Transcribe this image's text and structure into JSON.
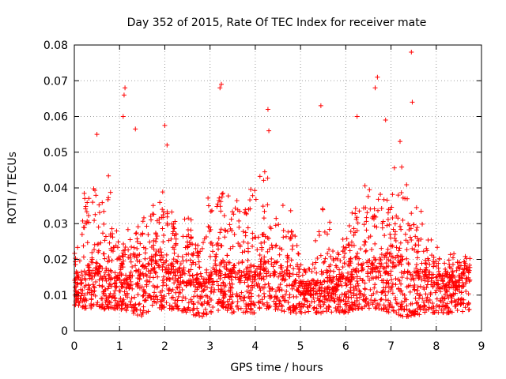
{
  "chart_data": {
    "type": "scatter",
    "title": "Day 352 of 2015, Rate Of TEC Index for receiver mate",
    "xlabel": "GPS time / hours",
    "ylabel": "ROTI / TECUs",
    "xlim": [
      0,
      9
    ],
    "ylim": [
      0,
      0.08
    ],
    "x_ticks": [
      "0",
      "1",
      "2",
      "3",
      "4",
      "5",
      "6",
      "7",
      "8",
      "9"
    ],
    "y_ticks": [
      "0",
      "0.01",
      "0.02",
      "0.03",
      "0.04",
      "0.05",
      "0.06",
      "0.07",
      "0.08"
    ],
    "grid": true,
    "marker": "+",
    "color": "#ff0000",
    "series": [
      {
        "name": "ROTI",
        "notable_points": [
          {
            "x": 7.45,
            "y": 0.078
          },
          {
            "x": 6.7,
            "y": 0.071
          },
          {
            "x": 6.65,
            "y": 0.068
          },
          {
            "x": 3.25,
            "y": 0.069
          },
          {
            "x": 3.22,
            "y": 0.068
          },
          {
            "x": 1.12,
            "y": 0.068
          },
          {
            "x": 1.1,
            "y": 0.066
          },
          {
            "x": 7.47,
            "y": 0.064
          },
          {
            "x": 4.28,
            "y": 0.062
          },
          {
            "x": 5.45,
            "y": 0.063
          },
          {
            "x": 1.08,
            "y": 0.06
          },
          {
            "x": 6.25,
            "y": 0.06
          },
          {
            "x": 6.88,
            "y": 0.059
          },
          {
            "x": 2.0,
            "y": 0.0575
          },
          {
            "x": 1.35,
            "y": 0.0565
          },
          {
            "x": 4.3,
            "y": 0.056
          },
          {
            "x": 0.5,
            "y": 0.055
          },
          {
            "x": 2.05,
            "y": 0.052
          },
          {
            "x": 7.2,
            "y": 0.053
          }
        ],
        "envelope": [
          {
            "x": 0.0,
            "low": 0.007,
            "mid": 0.012,
            "high": 0.026
          },
          {
            "x": 0.25,
            "low": 0.006,
            "mid": 0.014,
            "high": 0.045
          },
          {
            "x": 0.5,
            "low": 0.006,
            "mid": 0.016,
            "high": 0.05
          },
          {
            "x": 0.75,
            "low": 0.006,
            "mid": 0.013,
            "high": 0.045
          },
          {
            "x": 1.0,
            "low": 0.006,
            "mid": 0.012,
            "high": 0.03
          },
          {
            "x": 1.25,
            "low": 0.005,
            "mid": 0.012,
            "high": 0.028
          },
          {
            "x": 1.5,
            "low": 0.004,
            "mid": 0.014,
            "high": 0.032
          },
          {
            "x": 1.75,
            "low": 0.006,
            "mid": 0.018,
            "high": 0.04
          },
          {
            "x": 2.0,
            "low": 0.006,
            "mid": 0.017,
            "high": 0.042
          },
          {
            "x": 2.25,
            "low": 0.006,
            "mid": 0.014,
            "high": 0.032
          },
          {
            "x": 2.5,
            "low": 0.005,
            "mid": 0.013,
            "high": 0.032
          },
          {
            "x": 2.75,
            "low": 0.004,
            "mid": 0.012,
            "high": 0.03
          },
          {
            "x": 3.0,
            "low": 0.004,
            "mid": 0.013,
            "high": 0.042
          },
          {
            "x": 3.25,
            "low": 0.006,
            "mid": 0.016,
            "high": 0.045
          },
          {
            "x": 3.5,
            "low": 0.005,
            "mid": 0.015,
            "high": 0.04
          },
          {
            "x": 3.75,
            "low": 0.005,
            "mid": 0.014,
            "high": 0.042
          },
          {
            "x": 4.0,
            "low": 0.005,
            "mid": 0.014,
            "high": 0.043
          },
          {
            "x": 4.25,
            "low": 0.006,
            "mid": 0.016,
            "high": 0.046
          },
          {
            "x": 4.5,
            "low": 0.006,
            "mid": 0.015,
            "high": 0.04
          },
          {
            "x": 4.75,
            "low": 0.005,
            "mid": 0.013,
            "high": 0.036
          },
          {
            "x": 5.0,
            "low": 0.005,
            "mid": 0.01,
            "high": 0.02
          },
          {
            "x": 5.25,
            "low": 0.005,
            "mid": 0.01,
            "high": 0.02
          },
          {
            "x": 5.5,
            "low": 0.005,
            "mid": 0.011,
            "high": 0.04
          },
          {
            "x": 5.75,
            "low": 0.005,
            "mid": 0.011,
            "high": 0.024
          },
          {
            "x": 6.0,
            "low": 0.005,
            "mid": 0.012,
            "high": 0.028
          },
          {
            "x": 6.25,
            "low": 0.006,
            "mid": 0.014,
            "high": 0.038
          },
          {
            "x": 6.5,
            "low": 0.006,
            "mid": 0.016,
            "high": 0.045
          },
          {
            "x": 6.75,
            "low": 0.006,
            "mid": 0.017,
            "high": 0.042
          },
          {
            "x": 7.0,
            "low": 0.005,
            "mid": 0.018,
            "high": 0.046
          },
          {
            "x": 7.25,
            "low": 0.004,
            "mid": 0.017,
            "high": 0.046
          },
          {
            "x": 7.5,
            "low": 0.004,
            "mid": 0.015,
            "high": 0.038
          },
          {
            "x": 7.75,
            "low": 0.005,
            "mid": 0.014,
            "high": 0.032
          },
          {
            "x": 8.0,
            "low": 0.005,
            "mid": 0.012,
            "high": 0.024
          },
          {
            "x": 8.25,
            "low": 0.005,
            "mid": 0.012,
            "high": 0.022
          },
          {
            "x": 8.5,
            "low": 0.005,
            "mid": 0.012,
            "high": 0.022
          },
          {
            "x": 8.75,
            "low": 0.006,
            "mid": 0.013,
            "high": 0.022
          }
        ],
        "x_end": 8.75,
        "approx_point_count": 2600
      }
    ]
  }
}
